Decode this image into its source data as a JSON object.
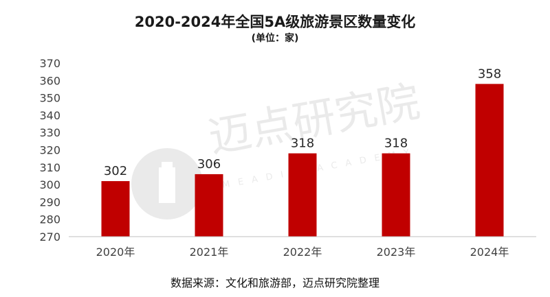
{
  "title": "2020-2024年全国5A级旅游景区数量变化",
  "subtitle": "(单位：家)",
  "source": "数据来源：文化和旅游部，迈点研究院整理",
  "watermark": {
    "cn": "迈点研究院",
    "en": "MEADIN ACADEMY"
  },
  "colors": {
    "bar": "#c00000",
    "axis": "#bfbfbf",
    "text": "#404040"
  },
  "chart_data": {
    "type": "bar",
    "categories": [
      "2020年",
      "2021年",
      "2022年",
      "2023年",
      "2024年"
    ],
    "values": [
      302,
      306,
      318,
      318,
      358
    ],
    "ylim": [
      270,
      370
    ],
    "yticks": [
      270,
      280,
      290,
      300,
      310,
      320,
      330,
      340,
      350,
      360,
      370
    ],
    "grid": false,
    "legend": "none"
  }
}
